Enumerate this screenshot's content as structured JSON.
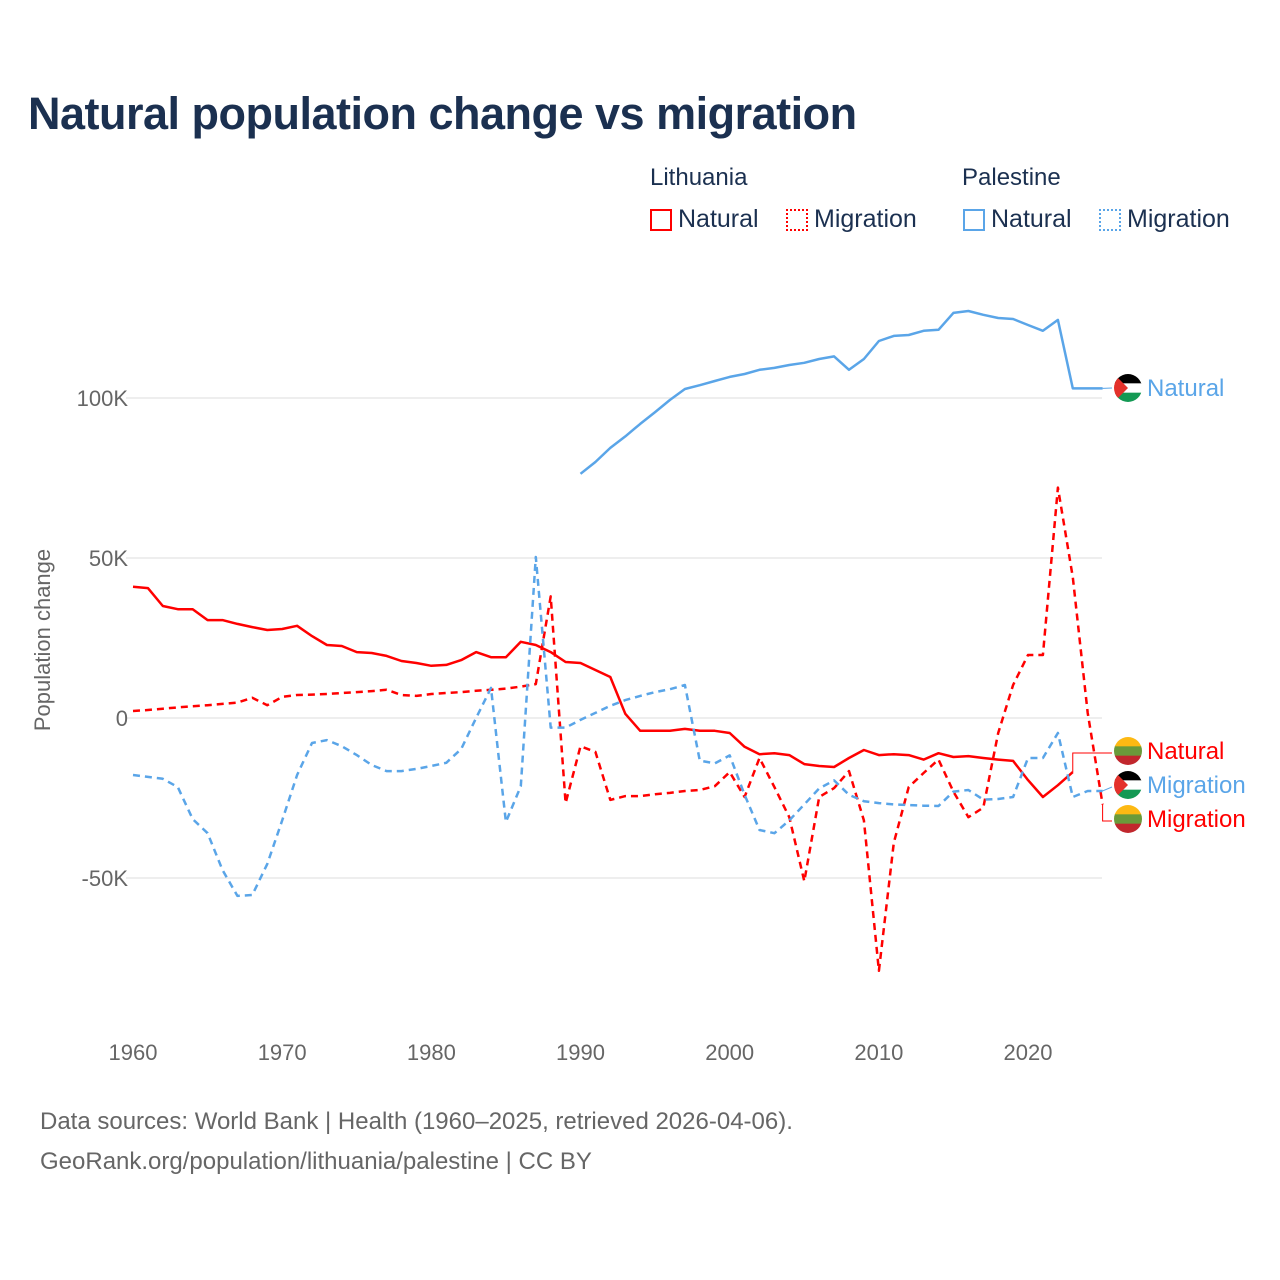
{
  "title": "Natural population change vs migration",
  "legend": {
    "groups": [
      {
        "name": "Lithuania",
        "color": "#ff0000",
        "items": [
          "Natural",
          "Migration"
        ]
      },
      {
        "name": "Palestine",
        "color": "#5aa5e8",
        "items": [
          "Natural",
          "Migration"
        ]
      }
    ]
  },
  "footer": {
    "line1": "Data sources: World Bank | Health (1960–2025, retrieved 2026-04-06).",
    "line2": "GeoRank.org/population/lithuania/palestine | CC BY"
  },
  "end_labels": {
    "palestine_natural": "Natural",
    "lithuania_natural": "Natural",
    "palestine_migration": "Migration",
    "lithuania_migration": "Migration"
  },
  "chart_data": {
    "type": "line",
    "title": "Natural population change vs migration",
    "xlabel": "",
    "ylabel": "Population change",
    "xlim": [
      1960,
      2025
    ],
    "ylim": [
      -90000,
      135000
    ],
    "x_ticks": [
      1960,
      1970,
      1980,
      1990,
      2000,
      2010,
      2020
    ],
    "y_ticks": [
      {
        "value": 100000,
        "label": "100K"
      },
      {
        "value": 50000,
        "label": "50K"
      },
      {
        "value": 0,
        "label": "0"
      },
      {
        "value": -50000,
        "label": "-50K"
      }
    ],
    "grid": true,
    "legend_position": "top-right",
    "series": [
      {
        "name": "Lithuania Natural",
        "color": "#ff0000",
        "dash": false,
        "start": 1960,
        "values": [
          41000,
          40600,
          35000,
          34000,
          34000,
          30600,
          30600,
          29400,
          28400,
          27500,
          27800,
          28800,
          25600,
          22800,
          22500,
          20600,
          20300,
          19400,
          17800,
          17200,
          16300,
          16600,
          18100,
          20600,
          19000,
          19000,
          23800,
          22800,
          20600,
          17500,
          17200,
          15000,
          12800,
          1300,
          -4000,
          -4000,
          -4000,
          -3400,
          -4000,
          -4000,
          -4700,
          -9000,
          -11300,
          -11000,
          -11600,
          -14400,
          -15000,
          -15300,
          -12500,
          -10000,
          -11600,
          -11300,
          -11600,
          -13000,
          -11000,
          -12200,
          -11900,
          -12500,
          -13000,
          -13400,
          -19400,
          -24700,
          -21000,
          -16900
        ]
      },
      {
        "name": "Lithuania Migration",
        "color": "#ff0000",
        "dash": true,
        "start": 1960,
        "values": [
          2200,
          2500,
          2900,
          3300,
          3700,
          4000,
          4400,
          4800,
          6300,
          4000,
          6600,
          7200,
          7300,
          7500,
          7800,
          8100,
          8400,
          8800,
          7200,
          6900,
          7500,
          7800,
          8100,
          8500,
          8800,
          9200,
          9800,
          10600,
          38000,
          -26600,
          -8800,
          -10600,
          -25600,
          -24400,
          -24400,
          -23800,
          -23400,
          -22800,
          -22500,
          -21300,
          -16900,
          -24700,
          -12500,
          -21600,
          -31000,
          -51000,
          -24700,
          -21900,
          -16600,
          -32000,
          -79000,
          -39000,
          -21600,
          -17200,
          -13000,
          -23000,
          -31000,
          -28000,
          -4700,
          10300,
          19700,
          19700,
          72000,
          44000,
          1600,
          -27000
        ]
      },
      {
        "name": "Palestine Natural",
        "color": "#5aa5e8",
        "dash": false,
        "start": 1990,
        "values": [
          76300,
          80000,
          84400,
          88000,
          91900,
          95600,
          99400,
          102800,
          104000,
          105300,
          106600,
          107500,
          108800,
          109400,
          110300,
          111000,
          112200,
          113000,
          108800,
          112200,
          117800,
          119400,
          119700,
          121000,
          121300,
          126600,
          127200,
          126000,
          125000,
          124700,
          122800,
          121000,
          124400,
          103000,
          103000,
          103000
        ]
      },
      {
        "name": "Palestine Migration",
        "color": "#5aa5e8",
        "dash": true,
        "start": 1960,
        "values": [
          -17800,
          -18400,
          -19000,
          -21600,
          -31600,
          -36000,
          -47500,
          -55600,
          -55300,
          -45600,
          -32000,
          -17800,
          -7800,
          -6900,
          -8800,
          -11600,
          -14700,
          -16600,
          -16600,
          -15900,
          -15000,
          -14000,
          -9700,
          0,
          9400,
          -32500,
          -21300,
          50300,
          -3000,
          -3000,
          -600,
          1600,
          3800,
          5600,
          6900,
          8100,
          9000,
          10300,
          -13300,
          -14200,
          -11700,
          -24000,
          -35000,
          -36000,
          -32000,
          -27000,
          -22000,
          -19500,
          -24000,
          -26000,
          -26600,
          -27000,
          -27200,
          -27400,
          -27500,
          -23000,
          -22500,
          -25500,
          -25300,
          -24700,
          -12500,
          -12500,
          -4700,
          -24700,
          -22800,
          -22800
        ]
      }
    ]
  }
}
